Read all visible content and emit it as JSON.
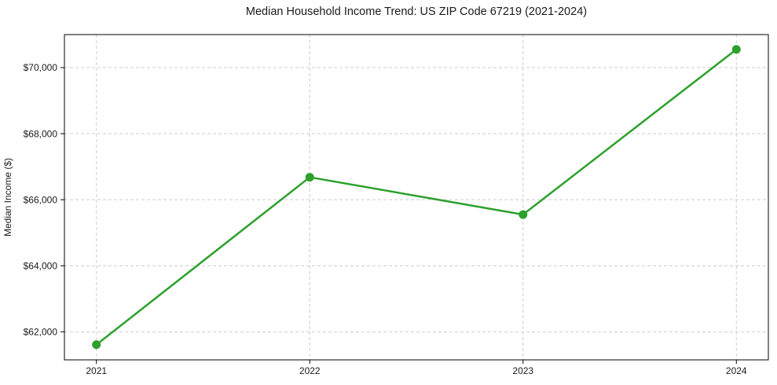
{
  "chart_data": {
    "type": "line",
    "title": "Median Household Income Trend: US ZIP Code 67219 (2021-2024)",
    "xlabel": "",
    "ylabel": "Median Income ($)",
    "x": [
      2021,
      2022,
      2023,
      2024
    ],
    "values": [
      61610,
      66680,
      65550,
      70550
    ],
    "xtick_labels": [
      "2021",
      "2022",
      "2023",
      "2024"
    ],
    "ytick_values": [
      62000,
      64000,
      66000,
      68000,
      70000
    ],
    "ytick_labels": [
      "$62,000",
      "$64,000",
      "$66,000",
      "$68,000",
      "$70,000"
    ],
    "xlim": [
      2020.85,
      2024.15
    ],
    "ylim": [
      61150,
      71000
    ],
    "grid": true,
    "grid_style": "dashed",
    "legend": "none",
    "line_color": "#2ca02c",
    "grid_color": "#cccccc",
    "spine_color": "#000000",
    "text_color": "#1a1a1a",
    "background": "#ffffff"
  }
}
